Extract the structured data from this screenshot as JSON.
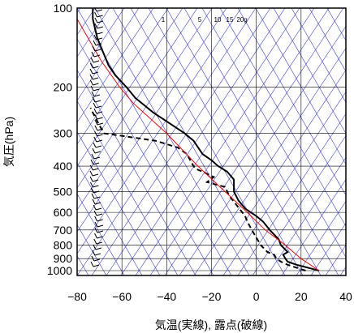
{
  "chart_data": {
    "type": "line",
    "xlabel": "気温(実線), 露点(破線)",
    "ylabel": "気圧(hPa)",
    "x_ticks": [
      -80,
      -60,
      -40,
      -20,
      0,
      20,
      40
    ],
    "x_tick_labels": [
      "−80",
      "−60",
      "−40",
      "−20",
      "0",
      "20",
      "40"
    ],
    "xlim": [
      -80,
      40
    ],
    "ylim": [
      1050,
      100
    ],
    "y_scale": "log",
    "y_ticks": [
      100,
      200,
      300,
      400,
      500,
      600,
      700,
      800,
      900,
      1000
    ],
    "y_tick_labels": [
      "100",
      "200",
      "300",
      "400",
      "500",
      "600",
      "700",
      "800",
      "900",
      "1000"
    ],
    "grid": true,
    "mixing_ratio_labels": [
      "1",
      "5",
      "10",
      "15",
      "20g"
    ],
    "colors": {
      "temperature": "#000000",
      "dewpoint": "#000000",
      "parcel": "#ff0000",
      "reference": "#3a3ae0",
      "grid": "#000000"
    },
    "series": [
      {
        "role": "temperature",
        "style": "solid",
        "points": [
          [
            28,
            1000
          ],
          [
            23,
            975
          ],
          [
            18,
            950
          ],
          [
            14,
            925
          ],
          [
            13,
            900
          ],
          [
            12,
            870
          ],
          [
            14,
            850
          ],
          [
            11,
            800
          ],
          [
            10,
            760
          ],
          [
            6,
            700
          ],
          [
            3,
            650
          ],
          [
            0,
            620
          ],
          [
            -5,
            580
          ],
          [
            -8,
            540
          ],
          [
            -10,
            500
          ],
          [
            -10,
            470
          ],
          [
            -10,
            450
          ],
          [
            -13,
            420
          ],
          [
            -17,
            400
          ],
          [
            -20,
            380
          ],
          [
            -24,
            360
          ],
          [
            -28,
            320
          ],
          [
            -32,
            300
          ],
          [
            -40,
            270
          ],
          [
            -46,
            250
          ],
          [
            -54,
            220
          ],
          [
            -58,
            200
          ],
          [
            -63,
            180
          ],
          [
            -66,
            165
          ],
          [
            -68,
            150
          ],
          [
            -71,
            130
          ],
          [
            -73,
            110
          ],
          [
            -73,
            100
          ]
        ]
      },
      {
        "role": "dewpoint",
        "style": "dashed",
        "points": [
          [
            22,
            1000
          ],
          [
            18,
            975
          ],
          [
            14,
            950
          ],
          [
            11,
            925
          ],
          [
            9,
            900
          ],
          [
            8,
            870
          ],
          [
            5,
            850
          ],
          [
            2,
            800
          ],
          [
            -2,
            700
          ],
          [
            -4,
            650
          ],
          [
            -5,
            620
          ],
          [
            -9,
            560
          ],
          [
            -12,
            520
          ],
          [
            -14,
            480
          ],
          [
            -18,
            470
          ],
          [
            -22,
            460
          ],
          [
            -19,
            440
          ],
          [
            -24,
            420
          ],
          [
            -27,
            410
          ],
          [
            -28,
            400
          ],
          [
            -31,
            360
          ],
          [
            -35,
            340
          ],
          [
            -45,
            320
          ],
          [
            -62,
            305
          ],
          [
            -68,
            300
          ],
          [
            -70,
            280
          ],
          [
            -72,
            260
          ],
          [
            -73,
            250
          ],
          [
            -74,
            240
          ]
        ]
      },
      {
        "role": "parcel",
        "style": "solid",
        "points": [
          [
            28,
            1000
          ],
          [
            20,
            900
          ],
          [
            13,
            800
          ],
          [
            4,
            700
          ],
          [
            -4,
            600
          ],
          [
            -14,
            500
          ],
          [
            -26,
            400
          ],
          [
            -40,
            300
          ],
          [
            -55,
            230
          ],
          [
            -61,
            200
          ],
          [
            -69,
            160
          ],
          [
            -74,
            135
          ],
          [
            -80,
            110
          ]
        ]
      }
    ],
    "wind_barbs_side": "left"
  }
}
